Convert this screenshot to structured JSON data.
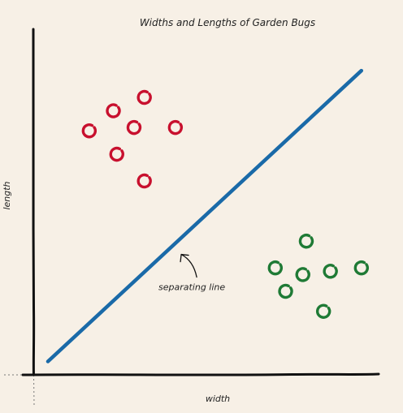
{
  "chart_data": {
    "type": "scatter",
    "title": "Widths and Lengths of Garden Bugs",
    "xlabel": "width",
    "ylabel": "length",
    "xlim": [
      0,
      10
    ],
    "ylim": [
      0,
      10
    ],
    "grid": false,
    "series": [
      {
        "color": "#c8102e",
        "points": [
          {
            "x": 2.3,
            "y": 7.9
          },
          {
            "x": 3.2,
            "y": 8.3
          },
          {
            "x": 1.6,
            "y": 7.3
          },
          {
            "x": 2.9,
            "y": 7.4
          },
          {
            "x": 4.1,
            "y": 7.4
          },
          {
            "x": 2.4,
            "y": 6.6
          },
          {
            "x": 3.2,
            "y": 5.8
          }
        ]
      },
      {
        "color": "#1f7a35",
        "points": [
          {
            "x": 7.9,
            "y": 4.0
          },
          {
            "x": 7.0,
            "y": 3.2
          },
          {
            "x": 7.8,
            "y": 3.0
          },
          {
            "x": 8.6,
            "y": 3.1
          },
          {
            "x": 9.5,
            "y": 3.2
          },
          {
            "x": 7.3,
            "y": 2.5
          },
          {
            "x": 8.4,
            "y": 1.9
          }
        ]
      }
    ],
    "separating_line": {
      "label": "separating line",
      "color": "#1a6aa8",
      "x": [
        0.4,
        9.5
      ],
      "y": [
        0.4,
        9.1
      ]
    },
    "annotation": {
      "text": "separating line",
      "arrow_to": {
        "x": 4.2,
        "y": 3.7
      }
    }
  }
}
